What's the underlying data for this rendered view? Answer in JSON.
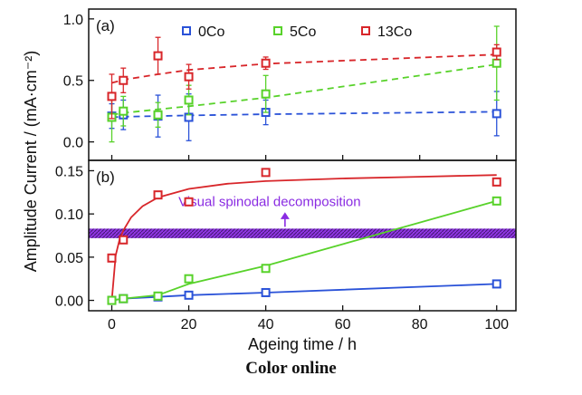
{
  "colors": {
    "0Co": "#2a52d8",
    "5Co": "#58d22a",
    "13Co": "#d8262a",
    "band": "#8a2be2",
    "axis": "#111111"
  },
  "footer_text": "Color online",
  "shared": {
    "ylabel": "Amplitude Current / (mA·cm⁻²)",
    "xlabel": "Ageing time / h",
    "xlim": [
      -6,
      105
    ],
    "xticks": [
      0,
      20,
      40,
      60,
      80,
      100
    ],
    "xtick_labels": [
      "0",
      "20",
      "40",
      "60",
      "80",
      "100"
    ]
  },
  "chart_data": [
    {
      "type": "scatter",
      "panel_label": "(a)",
      "x": [
        0,
        3,
        12,
        20,
        40,
        100
      ],
      "ylim": [
        -0.15,
        1.08
      ],
      "yticks": [
        0.0,
        0.5,
        1.0
      ],
      "ytick_labels": [
        "0.0",
        "0.5",
        "1.0"
      ],
      "legend": "top",
      "fit_style": "dashed",
      "series": [
        {
          "name": "0Co",
          "key": "0Co",
          "values": [
            0.21,
            0.22,
            0.21,
            0.2,
            0.24,
            0.23
          ],
          "err": [
            0.1,
            0.12,
            0.17,
            0.19,
            0.1,
            0.18
          ],
          "fit": [
            0.2,
            0.205,
            0.21,
            0.215,
            0.225,
            0.245
          ]
        },
        {
          "name": "5Co",
          "key": "5Co",
          "values": [
            0.2,
            0.25,
            0.22,
            0.34,
            0.39,
            0.64
          ],
          "err": [
            0.2,
            0.12,
            0.1,
            0.12,
            0.15,
            0.3
          ],
          "fit": [
            0.22,
            0.235,
            0.265,
            0.29,
            0.36,
            0.63
          ]
        },
        {
          "name": "13Co",
          "key": "13Co",
          "values": [
            0.37,
            0.5,
            0.7,
            0.53,
            0.64,
            0.73
          ],
          "err": [
            0.18,
            0.1,
            0.15,
            0.1,
            0.05,
            0.06
          ],
          "fit": [
            0.48,
            0.505,
            0.55,
            0.585,
            0.635,
            0.71
          ]
        }
      ]
    },
    {
      "type": "scatter",
      "panel_label": "(b)",
      "x": [
        0,
        3,
        12,
        20,
        40,
        100
      ],
      "ylim": [
        -0.012,
        0.162
      ],
      "yticks": [
        0.0,
        0.05,
        0.1,
        0.15
      ],
      "ytick_labels": [
        "0.00",
        "0.05",
        "0.10",
        "0.15"
      ],
      "fit_style": "solid",
      "band": {
        "y": [
          0.072,
          0.083
        ],
        "label": "Visual spinodal decomposition"
      },
      "series": [
        {
          "name": "0Co",
          "key": "0Co",
          "values": [
            0.0,
            0.002,
            0.004,
            0.006,
            0.009,
            0.019
          ],
          "fit": [
            0.0,
            0.002,
            0.004,
            0.006,
            0.009,
            0.019
          ]
        },
        {
          "name": "5Co",
          "key": "5Co",
          "values": [
            0.0,
            0.002,
            0.005,
            0.025,
            0.037,
            0.115
          ],
          "fit": [
            0.0,
            0.002,
            0.006,
            0.019,
            0.04,
            0.115
          ]
        },
        {
          "name": "13Co",
          "key": "13Co",
          "values": [
            0.049,
            0.07,
            0.122,
            0.114,
            0.148,
            0.137
          ],
          "fit_x": [
            0,
            1,
            2,
            3,
            5,
            8,
            12,
            20,
            30,
            40,
            60,
            80,
            100
          ],
          "fit": [
            0.0,
            0.052,
            0.07,
            0.081,
            0.096,
            0.109,
            0.119,
            0.129,
            0.135,
            0.138,
            0.141,
            0.143,
            0.145
          ]
        }
      ]
    }
  ]
}
